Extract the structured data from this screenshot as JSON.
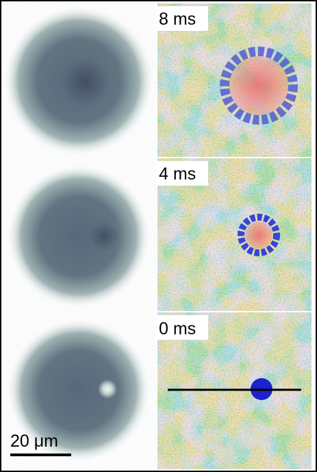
{
  "panels": [
    {
      "label": "8 ms"
    },
    {
      "label": "4 ms"
    },
    {
      "label": "0 ms"
    }
  ],
  "scale_bar": {
    "label": "20 μm"
  }
}
